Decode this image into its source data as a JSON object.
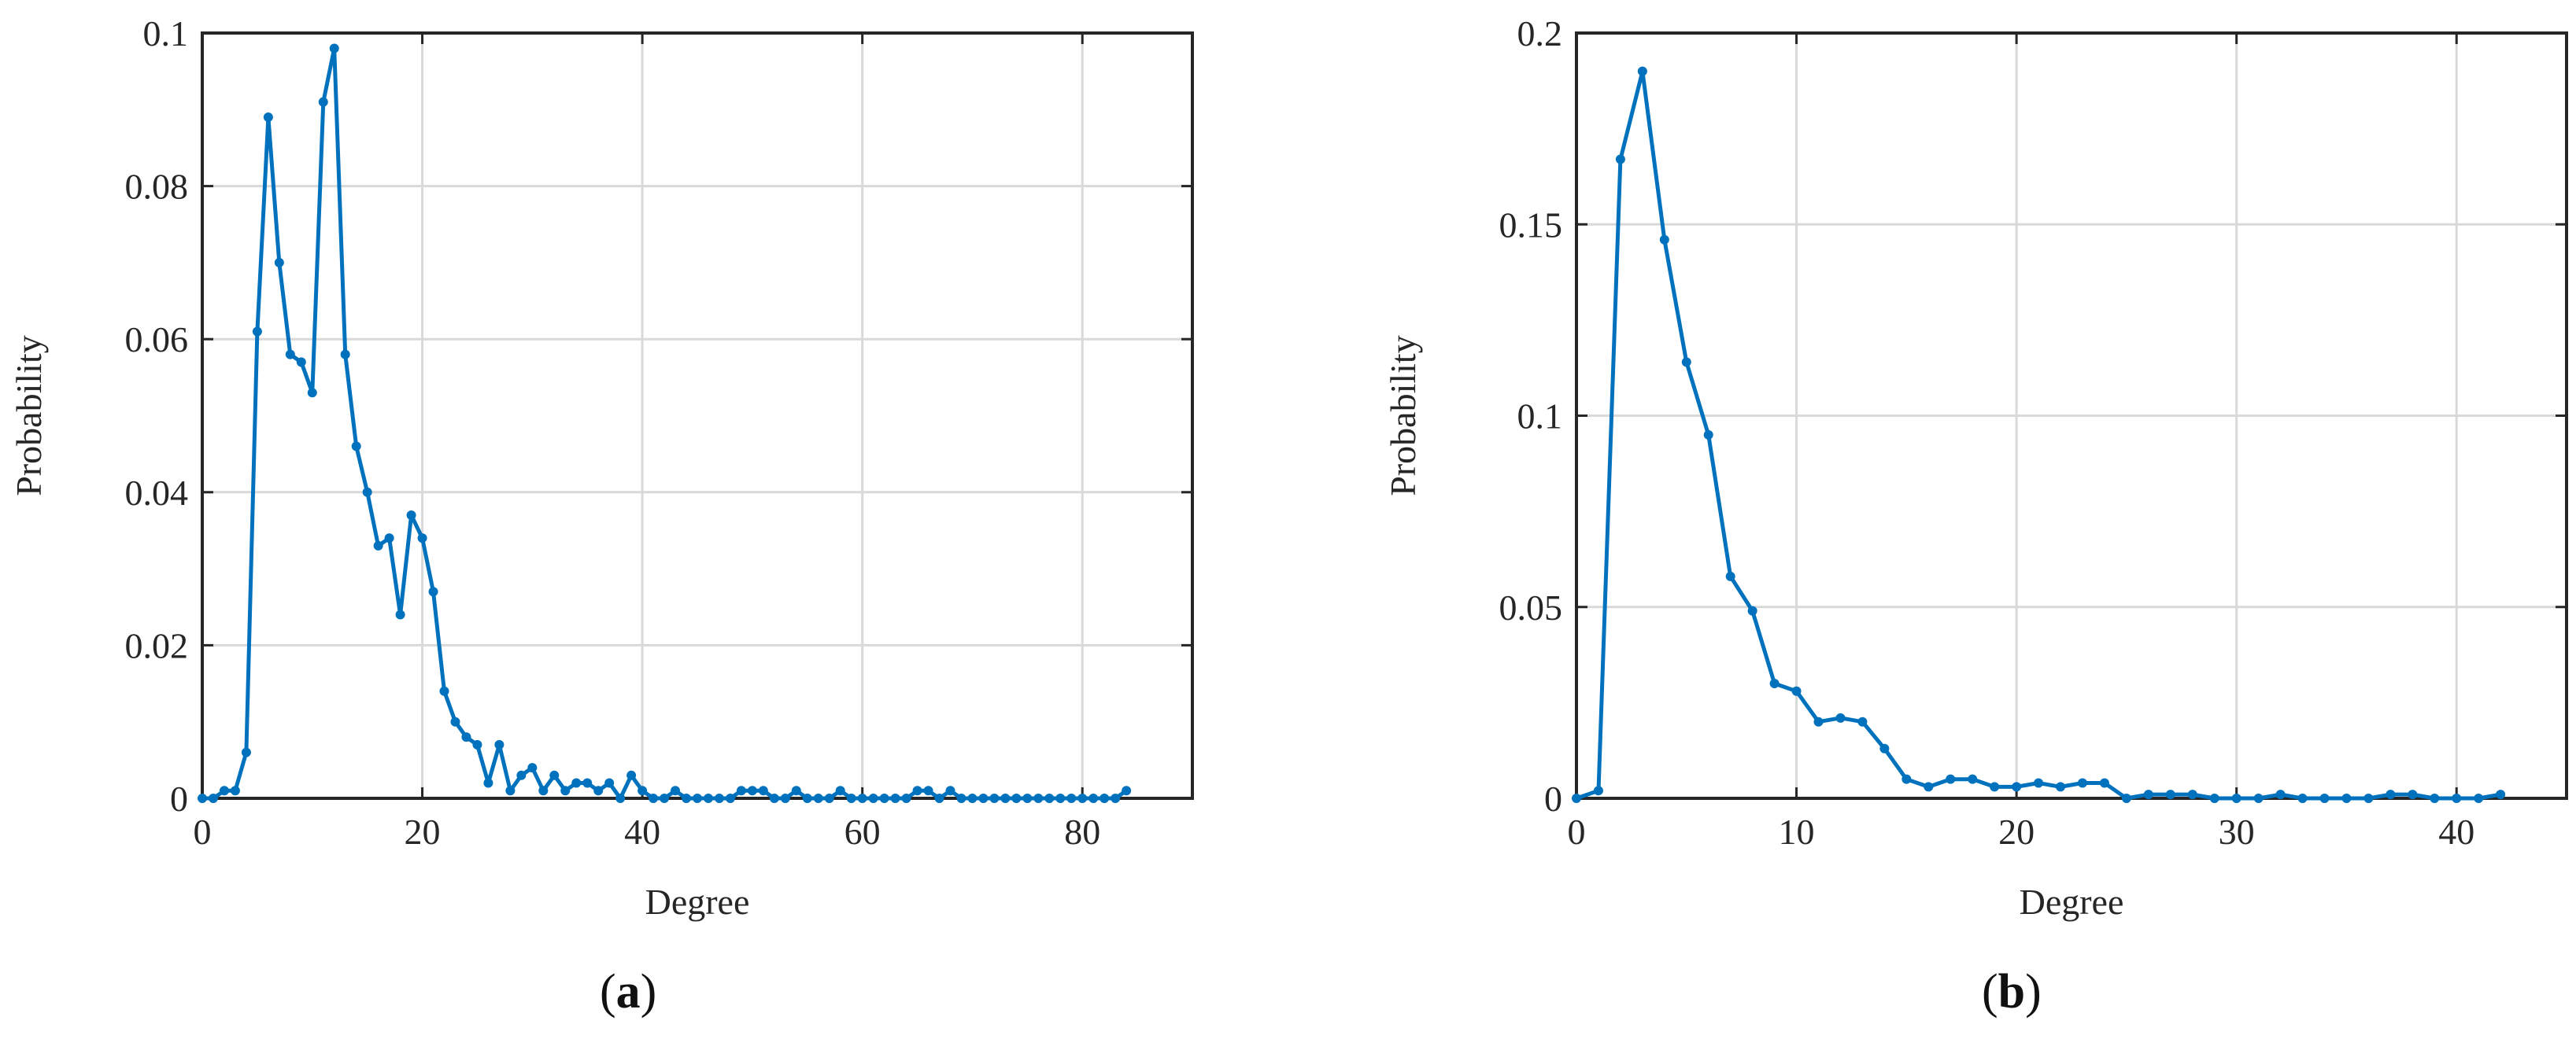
{
  "chart_data": [
    {
      "id": "a",
      "type": "line",
      "caption_letter": "a",
      "xlabel": "Degree",
      "ylabel": "Probability",
      "xlim": [
        0,
        90
      ],
      "ylim": [
        0,
        0.1
      ],
      "xticks": [
        0,
        20,
        40,
        60,
        80
      ],
      "yticks": [
        0,
        0.02,
        0.04,
        0.06,
        0.08,
        0.1
      ],
      "ytick_labels": [
        "0",
        "0.02",
        "0.04",
        "0.06",
        "0.08",
        "0.1"
      ],
      "grid": true,
      "color": "#0072BD",
      "series": [
        {
          "x": [
            0,
            1,
            2,
            3,
            4,
            5,
            6,
            7,
            8,
            9,
            10,
            11,
            12,
            13,
            14,
            15,
            16,
            17,
            18,
            19,
            20,
            21,
            22,
            23,
            24,
            25,
            26,
            27,
            28,
            29,
            30,
            31,
            32,
            33,
            34,
            35,
            36,
            37,
            38,
            39,
            40,
            41,
            42,
            43,
            44,
            45,
            46,
            47,
            48,
            49,
            50,
            51,
            52,
            53,
            54,
            55,
            56,
            57,
            58,
            59,
            60,
            61,
            62,
            63,
            64,
            65,
            66,
            67,
            68,
            69,
            70,
            71,
            72,
            73,
            74,
            75,
            76,
            77,
            78,
            79,
            80,
            81,
            82,
            83,
            84
          ],
          "y": [
            0,
            0,
            0.001,
            0.001,
            0.006,
            0.061,
            0.089,
            0.07,
            0.058,
            0.057,
            0.053,
            0.091,
            0.098,
            0.058,
            0.046,
            0.04,
            0.033,
            0.034,
            0.024,
            0.037,
            0.034,
            0.027,
            0.014,
            0.01,
            0.008,
            0.007,
            0.002,
            0.007,
            0.001,
            0.003,
            0.004,
            0.001,
            0.003,
            0.001,
            0.002,
            0.002,
            0.001,
            0.002,
            0,
            0.003,
            0.001,
            0,
            0,
            0.001,
            0,
            0,
            0,
            0,
            0,
            0.001,
            0.001,
            0.001,
            0,
            0,
            0.001,
            0,
            0,
            0,
            0.001,
            0,
            0,
            0,
            0,
            0,
            0,
            0.001,
            0.001,
            0,
            0.001,
            0,
            0,
            0,
            0,
            0,
            0,
            0,
            0,
            0,
            0,
            0,
            0,
            0,
            0,
            0,
            0.001
          ]
        }
      ]
    },
    {
      "id": "b",
      "type": "line",
      "caption_letter": "b",
      "xlabel": "Degree",
      "ylabel": "Probability",
      "xlim": [
        0,
        45
      ],
      "ylim": [
        0,
        0.2
      ],
      "xticks": [
        0,
        10,
        20,
        30,
        40
      ],
      "yticks": [
        0,
        0.05,
        0.1,
        0.15,
        0.2
      ],
      "ytick_labels": [
        "0",
        "0.05",
        "0.1",
        "0.15",
        "0.2"
      ],
      "grid": true,
      "color": "#0072BD",
      "series": [
        {
          "x": [
            0,
            1,
            2,
            3,
            4,
            5,
            6,
            7,
            8,
            9,
            10,
            11,
            12,
            13,
            14,
            15,
            16,
            17,
            18,
            19,
            20,
            21,
            22,
            23,
            24,
            25,
            26,
            27,
            28,
            29,
            30,
            31,
            32,
            33,
            34,
            35,
            36,
            37,
            38,
            39,
            40,
            41,
            42
          ],
          "y": [
            0,
            0.002,
            0.167,
            0.19,
            0.146,
            0.114,
            0.095,
            0.058,
            0.049,
            0.03,
            0.028,
            0.02,
            0.021,
            0.02,
            0.013,
            0.005,
            0.003,
            0.005,
            0.005,
            0.003,
            0.003,
            0.004,
            0.003,
            0.004,
            0.004,
            0,
            0.001,
            0.001,
            0.001,
            0,
            0,
            0,
            0.001,
            0,
            0,
            0,
            0,
            0.001,
            0.001,
            0,
            0,
            0,
            0.001
          ]
        }
      ]
    }
  ]
}
